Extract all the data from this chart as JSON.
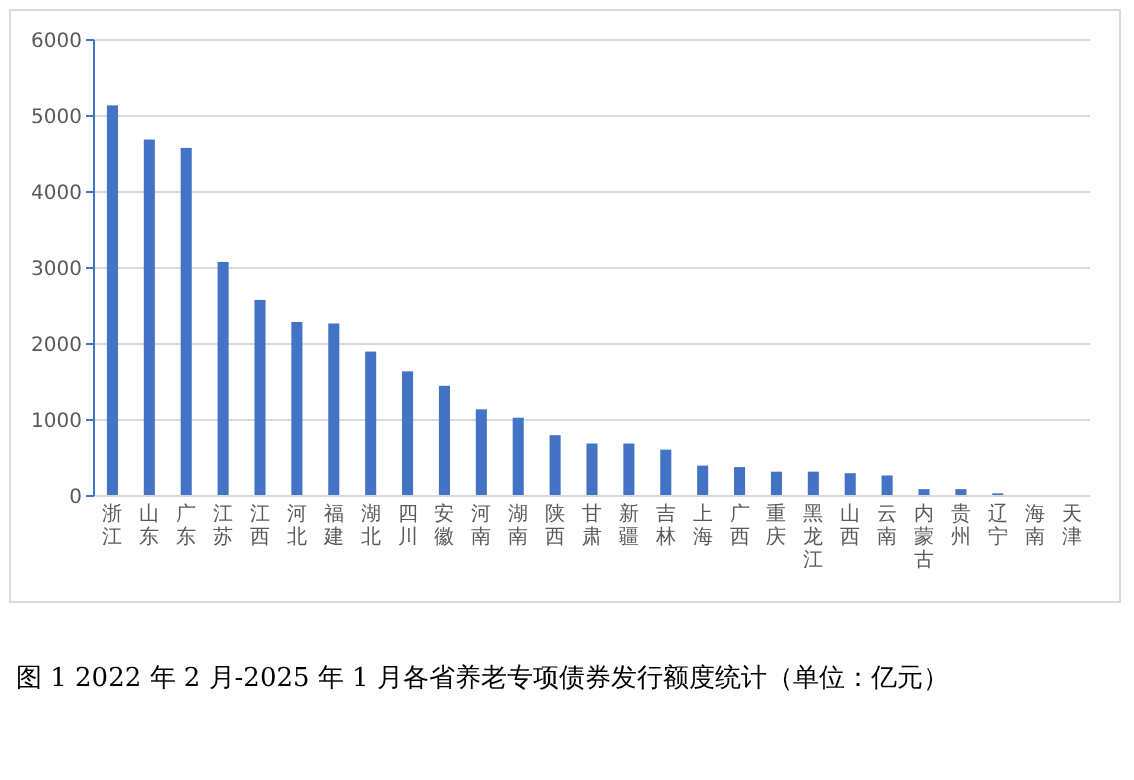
{
  "chart_data": {
    "type": "bar",
    "title": "图 1  2022 年 2 月-2025 年 1 月各省养老专项债券发行额度统计（单位：亿元）",
    "categories": [
      "浙江",
      "山东",
      "广东",
      "江苏",
      "江西",
      "河北",
      "福建",
      "湖北",
      "四川",
      "安徽",
      "河南",
      "湖南",
      "陕西",
      "甘肃",
      "新疆",
      "吉林",
      "上海",
      "广西",
      "重庆",
      "黑龙江",
      "山西",
      "云南",
      "内蒙古",
      "贵州",
      "辽宁",
      "海南",
      "天津"
    ],
    "values": [
      5140,
      4690,
      4580,
      3080,
      2580,
      2290,
      2270,
      1900,
      1640,
      1450,
      1140,
      1030,
      800,
      690,
      690,
      610,
      400,
      380,
      320,
      320,
      300,
      270,
      90,
      90,
      35,
      0,
      0
    ],
    "color": "#4472c4",
    "ylim": [
      0,
      6000
    ],
    "yticks": [
      0,
      1000,
      2000,
      3000,
      4000,
      5000,
      6000
    ],
    "grid": "y"
  }
}
